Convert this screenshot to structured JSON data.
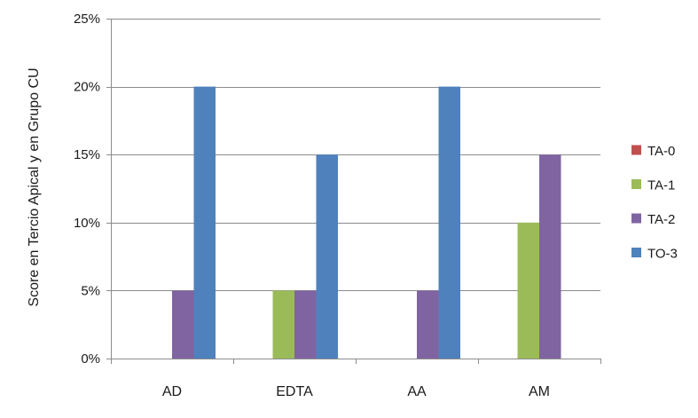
{
  "chart_data": {
    "type": "bar",
    "title": "",
    "xlabel": "",
    "ylabel": "Score en Tercio Apical y en Grupo CU",
    "categories": [
      "AD",
      "EDTA",
      "AA",
      "AM"
    ],
    "ylim": [
      0,
      25
    ],
    "yticks": [
      0,
      5,
      10,
      15,
      20,
      25
    ],
    "ytick_labels": [
      "0%",
      "5%",
      "10%",
      "15%",
      "20%",
      "25%"
    ],
    "grid": true,
    "legend_position": "right",
    "series": [
      {
        "name": "TA-0",
        "color": "#c0504d",
        "values": [
          0,
          0,
          0,
          0
        ]
      },
      {
        "name": "TA-1",
        "color": "#9bbb59",
        "values": [
          0,
          5,
          0,
          10
        ]
      },
      {
        "name": "TA-2",
        "color": "#8064a2",
        "values": [
          5,
          5,
          5,
          15
        ]
      },
      {
        "name": "TO-3",
        "color": "#4f81bd",
        "values": [
          20,
          15,
          20,
          0
        ]
      }
    ]
  }
}
